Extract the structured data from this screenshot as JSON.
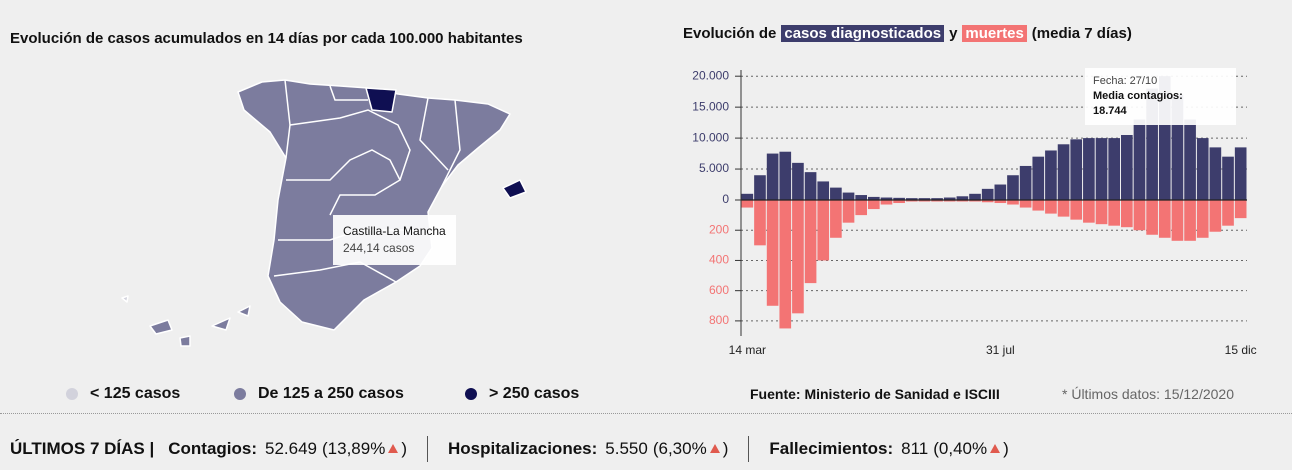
{
  "map_panel": {
    "title": "Evolución de casos acumulados en 14 días por cada 100.000 habitantes",
    "tooltip": {
      "region": "Castilla-La Mancha",
      "value": "244,14 casos"
    },
    "legend": [
      {
        "label": "< 125 casos",
        "color": "#d2d2dc"
      },
      {
        "label": "De 125 a 250 casos",
        "color": "#7c7c9e"
      },
      {
        "label": "> 250 casos",
        "color": "#0f0f52"
      }
    ]
  },
  "chart_data": {
    "type": "bar",
    "title": {
      "before": "Evolución de",
      "between": "y",
      "after": "(media 7 días)"
    },
    "categories": [
      "14 mar",
      null,
      null,
      null,
      null,
      null,
      null,
      null,
      null,
      null,
      null,
      null,
      null,
      null,
      null,
      null,
      null,
      null,
      null,
      null,
      "31 jul",
      null,
      null,
      null,
      null,
      null,
      null,
      null,
      null,
      null,
      null,
      null,
      null,
      null,
      null,
      null,
      null,
      null,
      null,
      "15 dic"
    ],
    "series": [
      {
        "name": "casos diagnosticados",
        "color": "#3d3d6c",
        "values": [
          1000,
          4000,
          7500,
          7800,
          6000,
          4500,
          3000,
          2000,
          1200,
          800,
          500,
          400,
          350,
          300,
          300,
          300,
          400,
          600,
          1000,
          1800,
          2500,
          4000,
          5500,
          7000,
          8000,
          9000,
          9800,
          10000,
          10000,
          10000,
          10500,
          13000,
          18000,
          20000,
          17000,
          13000,
          10000,
          8500,
          7000,
          8500
        ]
      },
      {
        "name": "muertes",
        "color": "#f37474",
        "axis": "y2",
        "values": [
          50,
          300,
          700,
          850,
          750,
          550,
          400,
          250,
          150,
          100,
          60,
          30,
          20,
          10,
          10,
          10,
          10,
          10,
          10,
          15,
          20,
          30,
          50,
          70,
          90,
          110,
          130,
          150,
          160,
          170,
          180,
          200,
          230,
          250,
          270,
          270,
          250,
          210,
          170,
          120
        ]
      }
    ],
    "ylim": [
      0,
      21000
    ],
    "yticks": [
      0,
      {
        "value": 5000,
        "label": "5.000"
      },
      {
        "value": 10000,
        "label": "10.000"
      },
      {
        "value": 15000,
        "label": "15.000"
      },
      {
        "value": 20000,
        "label": "20.000"
      }
    ],
    "y2lim": [
      0,
      900
    ],
    "y2ticks": [
      200,
      400,
      600,
      800
    ],
    "y2_inverted": true,
    "grid": true,
    "tooltip": {
      "date": "Fecha: 27/10",
      "label": "Media contagios:",
      "value": "18.744"
    },
    "source": "Fuente: Ministerio de Sanidad e ISCIII",
    "note": "* Últimos datos: 15/12/2020"
  },
  "footer": {
    "heading": "ÚLTIMOS 7 DÍAS |",
    "items": [
      {
        "label": "Contagios:",
        "value": "52.649",
        "change": [
          "(13,89%",
          ")"
        ]
      },
      {
        "label": "Hospitalizaciones:",
        "value": "5.550",
        "change": [
          "(6,30%",
          ")"
        ]
      },
      {
        "label": "Fallecimientos:",
        "value": "811",
        "change": [
          "(0,40%",
          ")"
        ]
      }
    ]
  }
}
